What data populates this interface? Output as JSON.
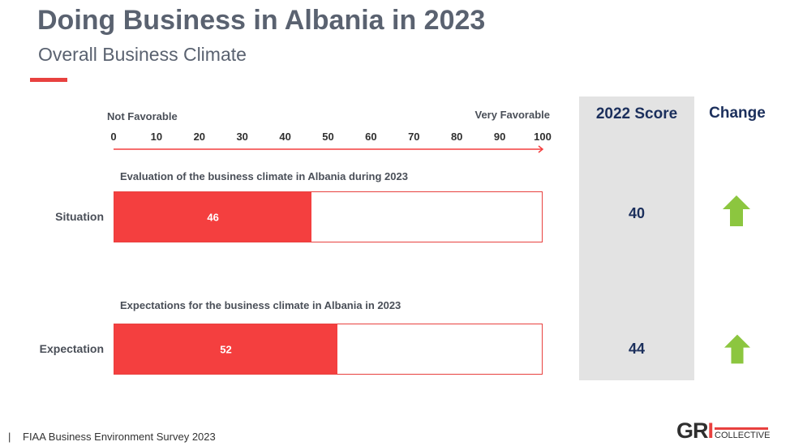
{
  "header": {
    "title": "Doing Business in Albania in 2023",
    "subtitle": "Overall Business Climate",
    "accent_color": "#e8413f"
  },
  "chart_data": {
    "type": "bar",
    "orientation": "horizontal",
    "scale_left_label": "Not Favorable",
    "scale_right_label": "Very Favorable",
    "xlim": [
      0,
      100
    ],
    "ticks": [
      0,
      10,
      20,
      30,
      40,
      50,
      60,
      70,
      80,
      90,
      100
    ],
    "bars": [
      {
        "label": "Situation",
        "caption": "Evaluation of the business climate in Albania during 2023",
        "value": 46,
        "score_2022": 40,
        "change": "up"
      },
      {
        "label": "Expectation",
        "caption": "Expectations for the business climate in Albania in 2023",
        "value": 52,
        "score_2022": 44,
        "change": "up"
      }
    ],
    "bar_color": "#f43f3f",
    "arrow_color": "#8cc63f"
  },
  "score_column": {
    "header": "2022 Score",
    "values": [
      "40",
      "44"
    ]
  },
  "change_column": {
    "header": "Change",
    "icons": [
      "arrow-up-icon",
      "arrow-up-icon"
    ]
  },
  "footer": {
    "separator": "|",
    "text": "FIAA Business Environment Survey 2023"
  },
  "logo": {
    "text_main": "GRI",
    "text_sub": "COLLECTIVE"
  }
}
